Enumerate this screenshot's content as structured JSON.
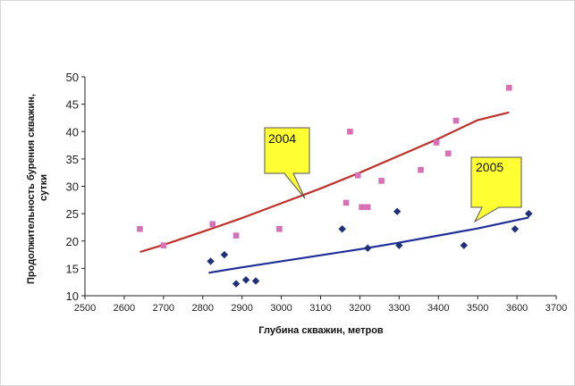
{
  "chart_data": {
    "type": "scatter",
    "xlabel": "Глубина скважин, метров",
    "ylabel": "Продолжительность бурения скважин, сутки",
    "ylabel_lines": [
      "Продолжительность бурения скважин,",
      "сутки"
    ],
    "xlim": [
      2500,
      3700
    ],
    "ylim": [
      10,
      50
    ],
    "xticks": [
      2500,
      2600,
      2700,
      2800,
      2900,
      3000,
      3100,
      3200,
      3300,
      3400,
      3500,
      3600,
      3700
    ],
    "yticks": [
      10,
      15,
      20,
      25,
      30,
      35,
      40,
      45,
      50
    ],
    "grid": false,
    "series": [
      {
        "name": "2004",
        "marker": "square",
        "color": "#d770b4",
        "points": [
          [
            2640,
            22.2
          ],
          [
            2700,
            19.2
          ],
          [
            2825,
            23.1
          ],
          [
            2885,
            21.0
          ],
          [
            2995,
            22.2
          ],
          [
            3165,
            27.0
          ],
          [
            3175,
            40.0
          ],
          [
            3195,
            32.0
          ],
          [
            3205,
            26.2
          ],
          [
            3220,
            26.2
          ],
          [
            3255,
            31.0
          ],
          [
            3355,
            33.0
          ],
          [
            3395,
            38.0
          ],
          [
            3425,
            36.0
          ],
          [
            3445,
            42.0
          ],
          [
            3580,
            48.0
          ]
        ],
        "trend": {
          "color": "#c0302a",
          "x": [
            2640,
            2700,
            2800,
            2900,
            3000,
            3100,
            3200,
            3300,
            3400,
            3500,
            3580
          ],
          "y": [
            18.0,
            19.3,
            21.7,
            24.2,
            26.9,
            29.6,
            32.5,
            35.6,
            38.7,
            42.1,
            43.5
          ]
        },
        "callout": "2004"
      },
      {
        "name": "2005",
        "marker": "diamond",
        "color": "#1f2f7a",
        "points": [
          [
            2820,
            16.3
          ],
          [
            2855,
            17.5
          ],
          [
            2885,
            12.2
          ],
          [
            2910,
            12.9
          ],
          [
            2935,
            12.7
          ],
          [
            3155,
            22.2
          ],
          [
            3220,
            18.7
          ],
          [
            3295,
            25.4
          ],
          [
            3300,
            19.2
          ],
          [
            3465,
            19.2
          ],
          [
            3595,
            22.2
          ],
          [
            3630,
            25.0
          ]
        ],
        "trend": {
          "color": "#1f2f9a",
          "x": [
            2815,
            2900,
            3000,
            3100,
            3200,
            3300,
            3400,
            3500,
            3630
          ],
          "y": [
            14.2,
            15.2,
            16.3,
            17.4,
            18.5,
            19.7,
            21.0,
            22.3,
            24.3
          ]
        },
        "callout": "2005"
      }
    ],
    "colors": {
      "callout_fill": "#ffff33",
      "callout_stroke": "#555555",
      "axis": "#222222"
    }
  }
}
